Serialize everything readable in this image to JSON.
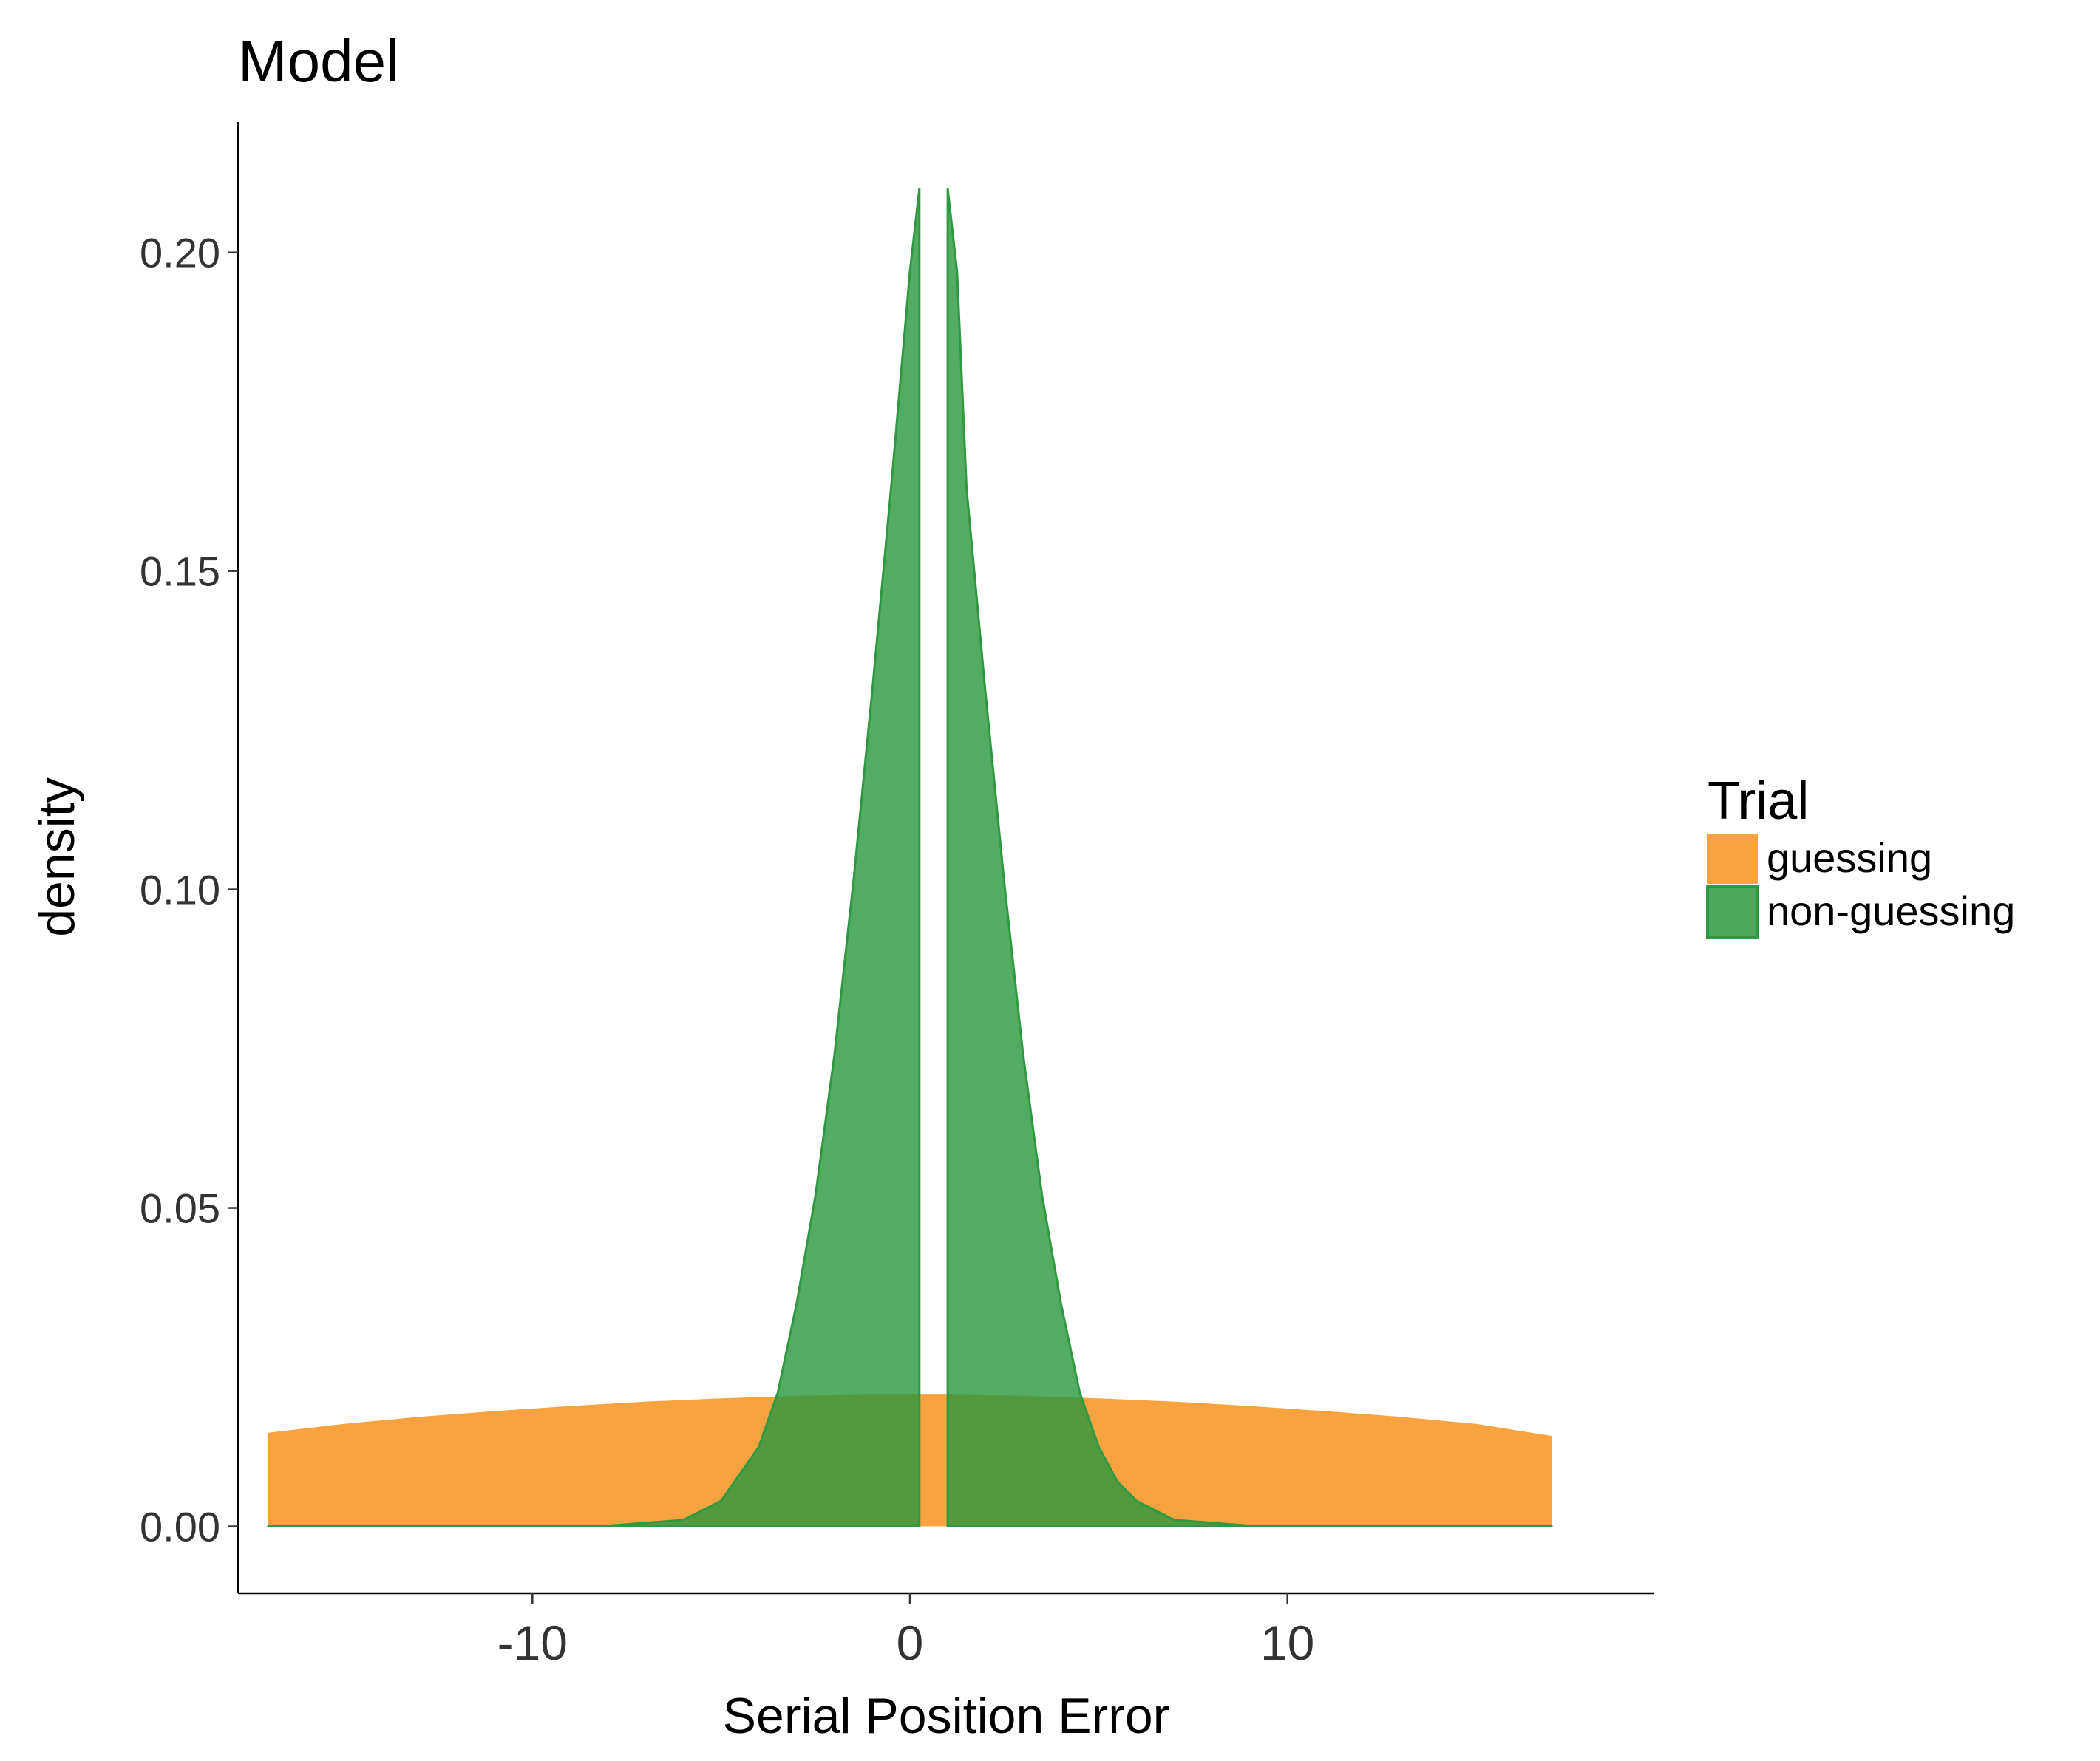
{
  "chart_data": {
    "type": "area",
    "title": "Model",
    "xlabel": "Serial Position Error",
    "ylabel": "density",
    "xlim": [
      -17.8,
      19.7
    ],
    "ylim": [
      -0.0105,
      0.2205
    ],
    "x_ticks": [
      -10,
      0,
      10
    ],
    "x_tick_labels": [
      "-10",
      "0",
      "10"
    ],
    "y_ticks": [
      0,
      0.05,
      0.1,
      0.15,
      0.2
    ],
    "y_tick_labels": [
      "0.00",
      "0.05",
      "0.10",
      "0.15",
      "0.20"
    ],
    "grid": false,
    "legend": {
      "title": "Trial",
      "position": "right",
      "items": [
        {
          "label": "guessing",
          "color": "#F7931E"
        },
        {
          "label": "non-guessing",
          "color": "#2E9940"
        }
      ]
    },
    "series": [
      {
        "name": "guessing",
        "color": "#F7931E",
        "x": [
          -17,
          -15,
          -13,
          -11,
          -9,
          -7,
          -5,
          -3,
          -1,
          0,
          1,
          3,
          5,
          7,
          9,
          11,
          13,
          15,
          17
        ],
        "y": [
          0.0147,
          0.0161,
          0.0172,
          0.0181,
          0.0189,
          0.0196,
          0.0201,
          0.0205,
          0.0207,
          0.0207,
          0.0207,
          0.0205,
          0.0201,
          0.0196,
          0.0189,
          0.0181,
          0.0172,
          0.0161,
          0.0142
        ]
      },
      {
        "name": "non-guessing",
        "color": "#2E9940",
        "x": [
          -17,
          -8,
          -6,
          -5,
          -4,
          -3.5,
          -3,
          -2.5,
          -2,
          -1.5,
          -1,
          -0.5,
          0,
          0.25
        ],
        "y": [
          0,
          0.0001,
          0.001,
          0.004,
          0.0125,
          0.021,
          0.035,
          0.052,
          0.074,
          0.101,
          0.131,
          0.163,
          0.197,
          0.21
        ]
      },
      {
        "name": "non-guessing",
        "color": "#2E9940",
        "x": [
          1,
          1.25,
          1.5,
          2,
          2.5,
          3,
          3.5,
          4,
          4.5,
          5,
          5.5,
          6,
          7,
          9,
          17
        ],
        "y": [
          0.21,
          0.197,
          0.163,
          0.131,
          0.101,
          0.074,
          0.052,
          0.035,
          0.021,
          0.0125,
          0.007,
          0.004,
          0.001,
          0.0001,
          0
        ]
      }
    ]
  }
}
